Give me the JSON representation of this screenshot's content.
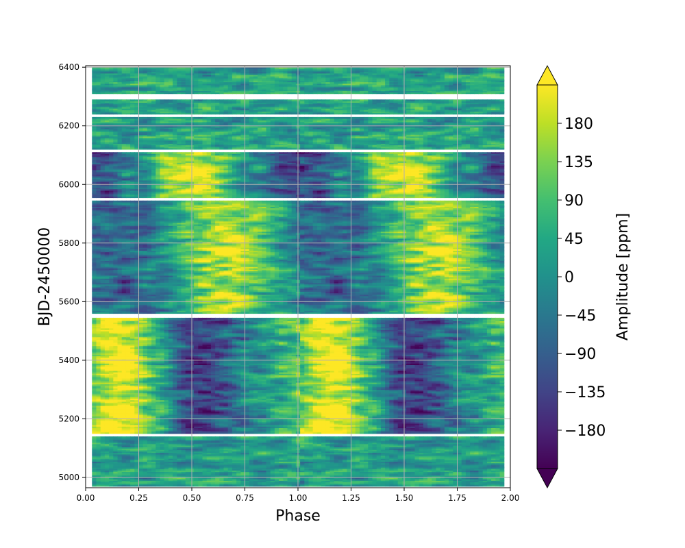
{
  "chart_data": {
    "type": "heatmap",
    "title": "",
    "xlabel": "Phase",
    "ylabel": "BJD-2450000",
    "xlim": [
      0.0,
      2.0
    ],
    "ylim": [
      4965,
      6405
    ],
    "x_ticks": [
      "0.00",
      "0.25",
      "0.50",
      "0.75",
      "1.00",
      "1.25",
      "1.50",
      "1.75",
      "2.00"
    ],
    "y_ticks": [
      "5000",
      "5200",
      "5400",
      "5600",
      "5800",
      "6000",
      "6200",
      "6400"
    ],
    "grid": true,
    "colormap": "viridis",
    "colorbar": {
      "label": "Amplitude [ppm]",
      "range": [
        -225,
        225
      ],
      "extend": "both",
      "ticks": [
        "180",
        "135",
        "90",
        "45",
        "0",
        "−45",
        "−90",
        "−135",
        "−180"
      ]
    },
    "data_phase_range": [
      0.03,
      1.97
    ],
    "segments": [
      {
        "y0": 4970,
        "y1": 5140
      },
      {
        "y0": 5150,
        "y1": 5545
      },
      {
        "y0": 5560,
        "y1": 5945
      },
      {
        "y0": 5955,
        "y1": 6110
      },
      {
        "y0": 6120,
        "y1": 6230
      },
      {
        "y0": 6240,
        "y1": 6290
      },
      {
        "y0": 6310,
        "y1": 6400
      }
    ],
    "dominant_features": [
      {
        "y_range": [
          5150,
          5545
        ],
        "peak_phase": 0.15,
        "peak_amplitude": 190,
        "trough_phase": 0.55,
        "trough_amplitude": -170
      },
      {
        "y_range": [
          5560,
          5945
        ],
        "peak_phase": 0.65,
        "peak_amplitude": 150,
        "trough_phase": 0.15,
        "trough_amplitude": -120
      },
      {
        "y_range": [
          5955,
          6110
        ],
        "peak_phase": 0.5,
        "peak_amplitude": 160,
        "trough_phase": 0.0,
        "trough_amplitude": -160
      }
    ]
  }
}
